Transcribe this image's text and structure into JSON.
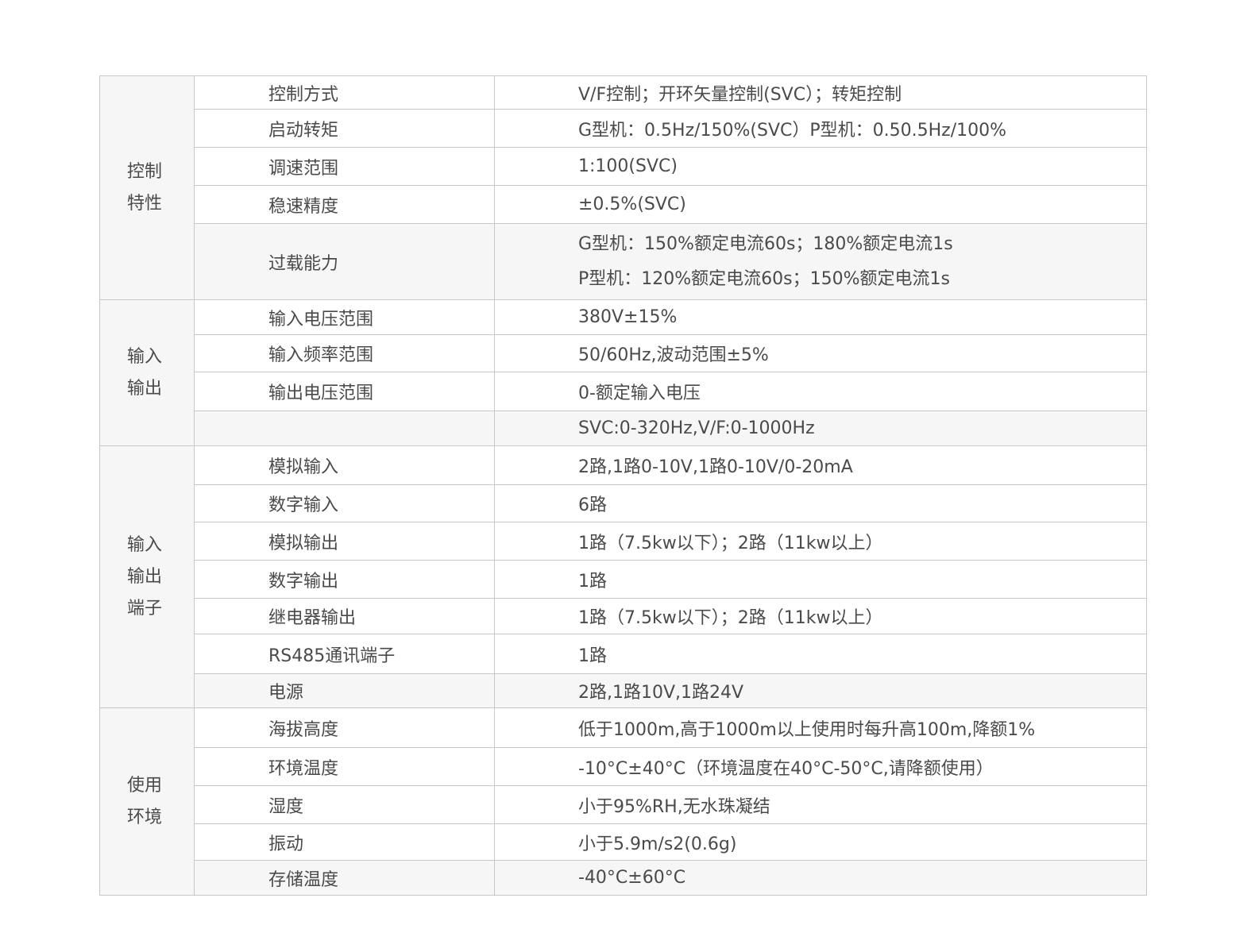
{
  "groups": [
    {
      "label": [
        "控制",
        "特性"
      ],
      "rows": [
        {
          "name": "控制方式",
          "value": [
            "V/F控制；开环矢量控制(SVC）；转矩控制"
          ],
          "gray": false,
          "h": 42
        },
        {
          "name": "启动转矩",
          "value": [
            "G型机：0.5Hz/150%(SVC）P型机：0.50.5Hz/100%"
          ],
          "gray": false,
          "h": 48
        },
        {
          "name": "调速范围",
          "value": [
            "1:100(SVC)"
          ],
          "gray": false,
          "h": 48
        },
        {
          "name": "稳速精度",
          "value": [
            "±0.5%(SVC)"
          ],
          "gray": false,
          "h": 48
        },
        {
          "name": "过载能力",
          "value": [
            "G型机：150%额定电流60s；180%额定电流1s",
            "P型机：120%额定电流60s；150%额定电流1s"
          ],
          "gray": true,
          "h": 96
        }
      ]
    },
    {
      "label": [
        "输入",
        "输出"
      ],
      "rows": [
        {
          "name": "输入电压范围",
          "value": [
            "380V±15%"
          ],
          "gray": false,
          "h": 44
        },
        {
          "name": "输入频率范围",
          "value": [
            "50/60Hz,波动范围±5%"
          ],
          "gray": false,
          "h": 47
        },
        {
          "name": "输出电压范围",
          "value": [
            "0-额定输入电压"
          ],
          "gray": false,
          "h": 49
        },
        {
          "name": "",
          "value": [
            "SVC:0-320Hz,V/F:0-1000Hz"
          ],
          "gray": true,
          "h": 44
        }
      ]
    },
    {
      "label": [
        "输入",
        "输出",
        "端子"
      ],
      "rows": [
        {
          "name": "模拟输入",
          "value": [
            "2路,1路0-10V,1路0-10V/0-20mA"
          ],
          "gray": false,
          "h": 49
        },
        {
          "name": "数字输入",
          "value": [
            "6路"
          ],
          "gray": false,
          "h": 47
        },
        {
          "name": "模拟输出",
          "value": [
            "1路（7.5kw以下）；2路（11kw以上）"
          ],
          "gray": false,
          "h": 48
        },
        {
          "name": "数字输出",
          "value": [
            "1路"
          ],
          "gray": false,
          "h": 48
        },
        {
          "name": "继电器输出",
          "value": [
            "1路（7.5kw以下）；2路（11kw以上）"
          ],
          "gray": false,
          "h": 45
        },
        {
          "name": "RS485通讯端子",
          "value": [
            "1路"
          ],
          "gray": false,
          "h": 50
        },
        {
          "name": "电源",
          "value": [
            "2路,1路10V,1路24V"
          ],
          "gray": true,
          "h": 43
        }
      ]
    },
    {
      "label": [
        "使用",
        "环境"
      ],
      "rows": [
        {
          "name": "海拔高度",
          "value": [
            "低于1000m,高于1000m以上使用时每升高100m,降额1%"
          ],
          "gray": false,
          "h": 50
        },
        {
          "name": "环境温度",
          "value": [
            "-10°C±40°C（环境温度在40°C-50°C,请降额使用）"
          ],
          "gray": false,
          "h": 48
        },
        {
          "name": "湿度",
          "value": [
            "小于95%RH,无水珠凝结"
          ],
          "gray": false,
          "h": 48
        },
        {
          "name": "振动",
          "value": [
            "小于5.9m/s2(0.6g)"
          ],
          "gray": false,
          "h": 46
        },
        {
          "name": "存储温度",
          "value": [
            "-40°C±60°C"
          ],
          "gray": true,
          "h": 44
        }
      ]
    }
  ]
}
